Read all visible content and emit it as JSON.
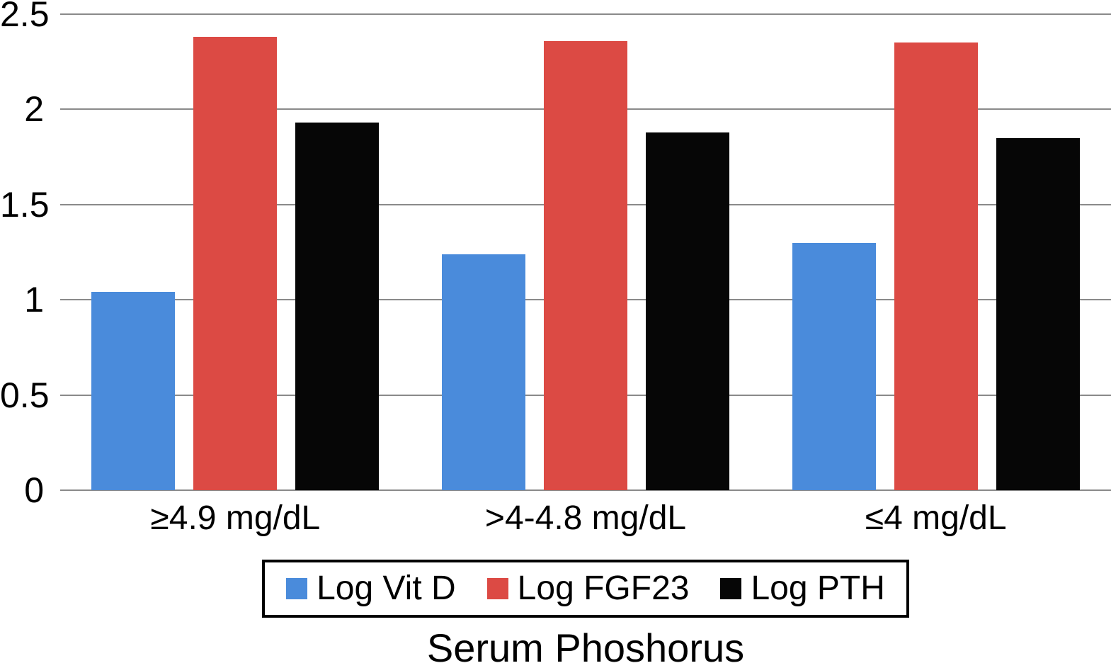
{
  "chart_data": {
    "type": "bar",
    "title": "",
    "xlabel": "Serum Phoshorus",
    "ylabel": "",
    "ylim": [
      0,
      2.5
    ],
    "yticks": [
      0,
      0.5,
      1,
      1.5,
      2,
      2.5
    ],
    "ytick_labels": [
      "0",
      "0.5",
      "1",
      "1.5",
      "2",
      "2.5"
    ],
    "grid": true,
    "legend_position": "bottom",
    "categories": [
      "≥4.9 mg/dL",
      ">4-4.8 mg/dL",
      "≤4 mg/dL"
    ],
    "series": [
      {
        "name": "Log Vit D",
        "color": "#4A8BDB",
        "values": [
          1.04,
          1.24,
          1.3
        ]
      },
      {
        "name": "Log FGF23",
        "color": "#DC4A44",
        "values": [
          2.38,
          2.36,
          2.35
        ]
      },
      {
        "name": "Log PTH",
        "color": "#060606",
        "values": [
          1.93,
          1.88,
          1.85
        ]
      }
    ]
  },
  "colors": {
    "background": "#FFFFFF",
    "gridline": "#8A8A8A",
    "axis_text": "#000000",
    "legend_border": "#000000"
  }
}
